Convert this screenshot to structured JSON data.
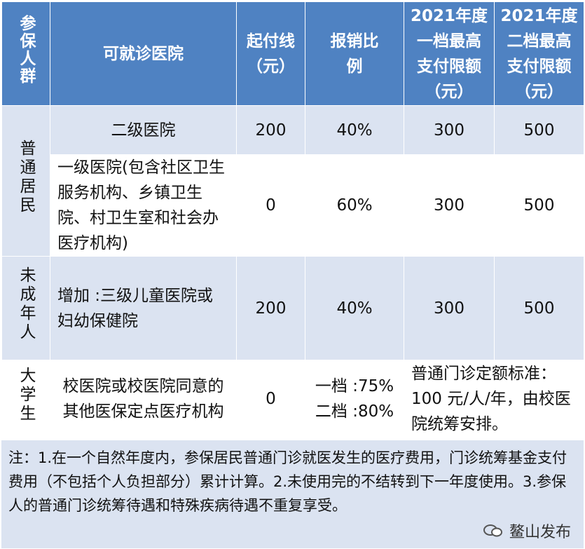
{
  "header": {
    "group": "参保人群",
    "hospital": "可就诊医院",
    "deductible": "起付线（元）",
    "ratio": "报销比例",
    "tier1": "2021年度一档最高支付限额（元）",
    "tier2": "2021年度二档最高支付限额（元）"
  },
  "groups": {
    "residents": "普通居民",
    "minors": "未成年人",
    "students": "大学生"
  },
  "rows": [
    {
      "hospital": "二级医院",
      "deductible": "200",
      "ratio": "40%",
      "tier1": "300",
      "tier2": "500"
    },
    {
      "hospital": "一级医院(包含社区卫生服务机构、乡镇卫生院、村卫生室和社会办医疗机构)",
      "deductible": "0",
      "ratio": "60%",
      "tier1": "300",
      "tier2": "500"
    },
    {
      "hospital": "增加 :三级儿童医院或妇幼保健院",
      "deductible": "200",
      "ratio": "40%",
      "tier1": "300",
      "tier2": "500"
    },
    {
      "hospital": "校医院或校医院同意的其他医保定点医疗机构",
      "deductible": "0",
      "ratio_line1": "一档 :75%",
      "ratio_line2": "二档 :80%",
      "quota": "普通门诊定额标准：100 元/人/年，由校医院统筹安排。"
    }
  ],
  "note": "注：1.在一个自然年度内，参保居民普通门诊就医发生的医疗费用，门诊统筹基金支付费用（不包括个人负担部分）累计计算。2.未使用完的不结转到下一年度使用。3.参保人的普通门诊统筹待遇和特殊疾病待遇不重复享受。",
  "watermark": "鳌山发布",
  "colors": {
    "header": "#4f82c2",
    "band": "#dbe3f1"
  }
}
